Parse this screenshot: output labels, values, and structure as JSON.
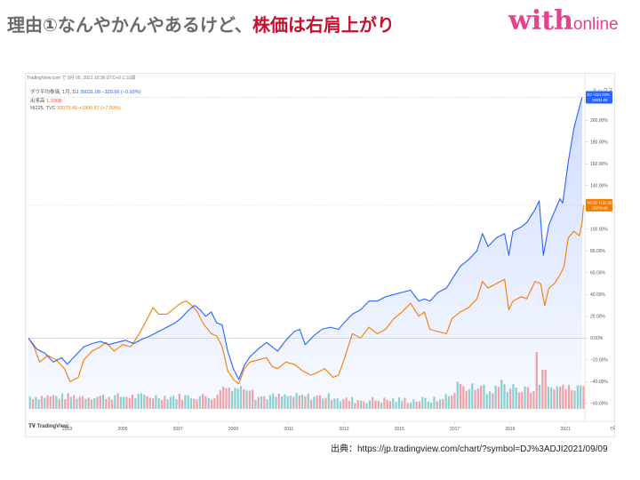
{
  "slide": {
    "title_prefix": "理由①なんやかんやあるけど、",
    "title_highlight": "株価は右肩上がり",
    "brand_main": "with",
    "brand_sub": "online",
    "source": "出典：https://jp.tradingview.com/chart/?symbol=DJ%3ADJI2021/09/09"
  },
  "chart_header": {
    "timestamp": "TradingView.com で 9月 09, 2021 10:36 UTC+9 に公開",
    "scale_label": "ミックス",
    "month_label": "7月",
    "logo": "TradingView"
  },
  "legend": [
    {
      "name": "ダウ平均株価, 1月, DJ",
      "value": "35031.08 −329.66 (−0.93%)",
      "color": "#2962ff"
    },
    {
      "name": "出来高",
      "value": "1.396B",
      "color": "#ef5350"
    },
    {
      "name": "NI225, TVC",
      "value": "30079.49 +1990.57 (+7.09%)",
      "color": "#f57c00"
    }
  ],
  "chart_data": {
    "type": "line",
    "x_ticks": [
      "2003",
      "2005",
      "2007",
      "2009",
      "2011",
      "2013",
      "2015",
      "2017",
      "2019",
      "2021"
    ],
    "y_ticks": [
      "220.00%",
      "200.00%",
      "180.00%",
      "160.00%",
      "140.00%",
      "120.00%",
      "100.00%",
      "80.00%",
      "60.00%",
      "40.00%",
      "20.00%",
      "0.00%",
      "−20.00%",
      "−40.00%",
      "−60.00%"
    ],
    "ylim": [
      -65,
      232
    ],
    "xlim": [
      2001.6,
      2021.7
    ],
    "series": [
      {
        "name": "DJ",
        "color": "#2962ff",
        "last_label": "+221.03%",
        "last_value": "35031.08",
        "points": [
          [
            2001.6,
            0
          ],
          [
            2001.9,
            -10
          ],
          [
            2002.2,
            -14
          ],
          [
            2002.5,
            -22
          ],
          [
            2002.8,
            -18
          ],
          [
            2003.0,
            -24
          ],
          [
            2003.3,
            -16
          ],
          [
            2003.6,
            -8
          ],
          [
            2003.9,
            -5
          ],
          [
            2004.2,
            -3
          ],
          [
            2004.5,
            -6
          ],
          [
            2004.8,
            -4
          ],
          [
            2005.1,
            -2
          ],
          [
            2005.4,
            -5
          ],
          [
            2005.7,
            -1
          ],
          [
            2006.0,
            2
          ],
          [
            2006.3,
            6
          ],
          [
            2006.6,
            10
          ],
          [
            2006.9,
            14
          ],
          [
            2007.1,
            18
          ],
          [
            2007.4,
            26
          ],
          [
            2007.6,
            30
          ],
          [
            2007.8,
            26
          ],
          [
            2008.0,
            20
          ],
          [
            2008.2,
            24
          ],
          [
            2008.4,
            14
          ],
          [
            2008.6,
            12
          ],
          [
            2008.8,
            -12
          ],
          [
            2009.0,
            -28
          ],
          [
            2009.2,
            -38
          ],
          [
            2009.4,
            -25
          ],
          [
            2009.6,
            -17
          ],
          [
            2009.9,
            -10
          ],
          [
            2010.2,
            -4
          ],
          [
            2010.4,
            -8
          ],
          [
            2010.6,
            -12
          ],
          [
            2010.9,
            -2
          ],
          [
            2011.2,
            6
          ],
          [
            2011.4,
            8
          ],
          [
            2011.6,
            -6
          ],
          [
            2011.9,
            2
          ],
          [
            2012.2,
            8
          ],
          [
            2012.5,
            10
          ],
          [
            2012.8,
            8
          ],
          [
            2013.0,
            14
          ],
          [
            2013.3,
            22
          ],
          [
            2013.6,
            26
          ],
          [
            2013.9,
            34
          ],
          [
            2014.2,
            34
          ],
          [
            2014.5,
            38
          ],
          [
            2014.8,
            40
          ],
          [
            2015.1,
            42
          ],
          [
            2015.4,
            44
          ],
          [
            2015.7,
            34
          ],
          [
            2015.9,
            36
          ],
          [
            2016.1,
            34
          ],
          [
            2016.4,
            42
          ],
          [
            2016.7,
            46
          ],
          [
            2016.9,
            54
          ],
          [
            2017.2,
            66
          ],
          [
            2017.5,
            72
          ],
          [
            2017.8,
            80
          ],
          [
            2018.0,
            96
          ],
          [
            2018.2,
            84
          ],
          [
            2018.5,
            92
          ],
          [
            2018.8,
            96
          ],
          [
            2018.95,
            76
          ],
          [
            2019.1,
            98
          ],
          [
            2019.4,
            102
          ],
          [
            2019.6,
            106
          ],
          [
            2019.9,
            118
          ],
          [
            2020.05,
            126
          ],
          [
            2020.2,
            76
          ],
          [
            2020.4,
            104
          ],
          [
            2020.6,
            116
          ],
          [
            2020.8,
            128
          ],
          [
            2020.9,
            124
          ],
          [
            2021.1,
            162
          ],
          [
            2021.3,
            192
          ],
          [
            2021.5,
            212
          ],
          [
            2021.6,
            221
          ]
        ]
      },
      {
        "name": "NI225",
        "color": "#f57c00",
        "last_label": "+122.92%",
        "last_value": "30079.49",
        "points": [
          [
            2001.6,
            0
          ],
          [
            2001.8,
            -8
          ],
          [
            2002.0,
            -22
          ],
          [
            2002.3,
            -16
          ],
          [
            2002.6,
            -20
          ],
          [
            2002.9,
            -28
          ],
          [
            2003.1,
            -40
          ],
          [
            2003.4,
            -36
          ],
          [
            2003.6,
            -20
          ],
          [
            2003.9,
            -12
          ],
          [
            2004.2,
            -8
          ],
          [
            2004.4,
            -4
          ],
          [
            2004.7,
            -12
          ],
          [
            2005.0,
            -6
          ],
          [
            2005.3,
            -8
          ],
          [
            2005.6,
            4
          ],
          [
            2005.9,
            18
          ],
          [
            2006.1,
            28
          ],
          [
            2006.3,
            22
          ],
          [
            2006.6,
            22
          ],
          [
            2006.9,
            28
          ],
          [
            2007.1,
            32
          ],
          [
            2007.3,
            34
          ],
          [
            2007.5,
            30
          ],
          [
            2007.7,
            24
          ],
          [
            2007.9,
            14
          ],
          [
            2008.2,
            4
          ],
          [
            2008.4,
            2
          ],
          [
            2008.6,
            -8
          ],
          [
            2008.8,
            -30
          ],
          [
            2009.0,
            -38
          ],
          [
            2009.2,
            -42
          ],
          [
            2009.4,
            -28
          ],
          [
            2009.6,
            -22
          ],
          [
            2009.9,
            -20
          ],
          [
            2010.2,
            -18
          ],
          [
            2010.4,
            -26
          ],
          [
            2010.6,
            -28
          ],
          [
            2010.9,
            -22
          ],
          [
            2011.2,
            -24
          ],
          [
            2011.5,
            -30
          ],
          [
            2011.8,
            -34
          ],
          [
            2012.0,
            -32
          ],
          [
            2012.3,
            -28
          ],
          [
            2012.6,
            -36
          ],
          [
            2012.8,
            -34
          ],
          [
            2013.0,
            -20
          ],
          [
            2013.3,
            4
          ],
          [
            2013.6,
            0
          ],
          [
            2013.9,
            10
          ],
          [
            2014.2,
            4
          ],
          [
            2014.5,
            8
          ],
          [
            2014.8,
            18
          ],
          [
            2015.1,
            24
          ],
          [
            2015.4,
            32
          ],
          [
            2015.7,
            20
          ],
          [
            2015.9,
            24
          ],
          [
            2016.1,
            8
          ],
          [
            2016.4,
            6
          ],
          [
            2016.7,
            4
          ],
          [
            2016.9,
            18
          ],
          [
            2017.2,
            24
          ],
          [
            2017.5,
            28
          ],
          [
            2017.8,
            36
          ],
          [
            2018.0,
            52
          ],
          [
            2018.2,
            46
          ],
          [
            2018.5,
            50
          ],
          [
            2018.8,
            54
          ],
          [
            2018.95,
            26
          ],
          [
            2019.1,
            34
          ],
          [
            2019.4,
            38
          ],
          [
            2019.6,
            36
          ],
          [
            2019.9,
            52
          ],
          [
            2020.1,
            50
          ],
          [
            2020.25,
            30
          ],
          [
            2020.4,
            46
          ],
          [
            2020.6,
            50
          ],
          [
            2020.8,
            58
          ],
          [
            2020.95,
            66
          ],
          [
            2021.1,
            92
          ],
          [
            2021.3,
            98
          ],
          [
            2021.5,
            94
          ],
          [
            2021.6,
            106
          ],
          [
            2021.65,
            122
          ]
        ]
      }
    ]
  }
}
